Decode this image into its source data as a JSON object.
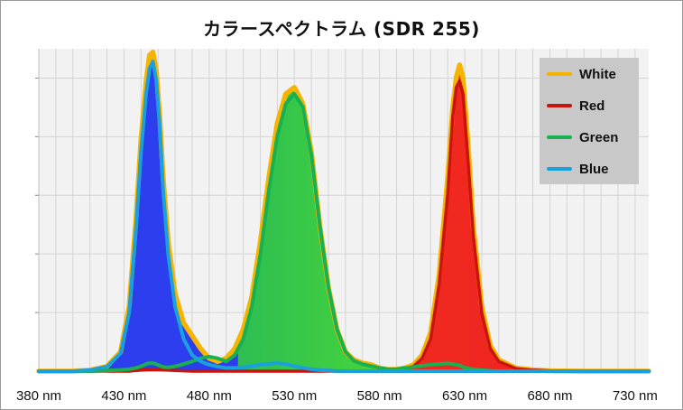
{
  "chart_data": {
    "type": "area",
    "title": "カラースペクトラム (SDR 255)",
    "xlabel": "",
    "ylabel": "",
    "x_ticks": [
      "380 nm",
      "430 nm",
      "480 nm",
      "530 nm",
      "580 nm",
      "630 nm",
      "680 nm",
      "730 nm"
    ],
    "xlim": [
      380,
      738
    ],
    "ylim": [
      0,
      1.0
    ],
    "grid": true,
    "legend_position": "top-right",
    "x": [
      380,
      400,
      410,
      420,
      428,
      433,
      437,
      440,
      443,
      445,
      447,
      449,
      451,
      453,
      456,
      460,
      465,
      470,
      475,
      480,
      485,
      490,
      495,
      500,
      505,
      510,
      515,
      520,
      525,
      530,
      535,
      540,
      545,
      550,
      555,
      560,
      565,
      570,
      575,
      580,
      585,
      590,
      595,
      600,
      605,
      610,
      615,
      620,
      623,
      625,
      627,
      629,
      632,
      635,
      640,
      645,
      650,
      660,
      670,
      680,
      700,
      738
    ],
    "series": [
      {
        "name": "White",
        "color": "#f5b400",
        "values": [
          0,
          0,
          0.003,
          0.015,
          0.06,
          0.2,
          0.47,
          0.72,
          0.9,
          0.98,
          0.99,
          0.93,
          0.79,
          0.6,
          0.4,
          0.24,
          0.15,
          0.11,
          0.07,
          0.04,
          0.03,
          0.04,
          0.07,
          0.13,
          0.23,
          0.4,
          0.6,
          0.77,
          0.86,
          0.88,
          0.83,
          0.68,
          0.45,
          0.26,
          0.13,
          0.06,
          0.035,
          0.025,
          0.02,
          0.01,
          0.005,
          0.006,
          0.01,
          0.02,
          0.05,
          0.12,
          0.3,
          0.6,
          0.82,
          0.91,
          0.95,
          0.91,
          0.7,
          0.45,
          0.2,
          0.08,
          0.035,
          0.01,
          0.004,
          0.001,
          0,
          0
        ]
      },
      {
        "name": "Red",
        "color": "#c8140c",
        "values": [
          0,
          0,
          0,
          0,
          0,
          0,
          0.002,
          0.003,
          0.004,
          0.005,
          0.005,
          0.005,
          0.005,
          0.004,
          0.003,
          0.002,
          0.001,
          0,
          0,
          0,
          0,
          0,
          0,
          0,
          0,
          0,
          0,
          0,
          0,
          0,
          0,
          0,
          0,
          0,
          0,
          0,
          0,
          0,
          0,
          0.001,
          0.003,
          0.004,
          0.008,
          0.015,
          0.04,
          0.1,
          0.27,
          0.55,
          0.79,
          0.88,
          0.9,
          0.86,
          0.65,
          0.42,
          0.18,
          0.07,
          0.03,
          0.008,
          0.003,
          0.001,
          0,
          0
        ]
      },
      {
        "name": "Green",
        "color": "#18b050",
        "values": [
          0,
          0,
          0,
          0.002,
          0.004,
          0.006,
          0.01,
          0.015,
          0.022,
          0.025,
          0.025,
          0.022,
          0.017,
          0.013,
          0.012,
          0.015,
          0.022,
          0.03,
          0.04,
          0.045,
          0.04,
          0.03,
          0.05,
          0.1,
          0.2,
          0.36,
          0.56,
          0.73,
          0.83,
          0.86,
          0.82,
          0.67,
          0.45,
          0.26,
          0.13,
          0.06,
          0.032,
          0.022,
          0.016,
          0.01,
          0.006,
          0.006,
          0.01,
          0.013,
          0.017,
          0.02,
          0.022,
          0.024,
          0.022,
          0.02,
          0.018,
          0.013,
          0.008,
          0.006,
          0.003,
          0.001,
          0,
          0,
          0,
          0,
          0,
          0
        ]
      },
      {
        "name": "Blue",
        "color": "#1aa0dc",
        "values": [
          0,
          0,
          0.003,
          0.014,
          0.055,
          0.18,
          0.44,
          0.68,
          0.86,
          0.94,
          0.96,
          0.9,
          0.76,
          0.56,
          0.36,
          0.2,
          0.1,
          0.05,
          0.03,
          0.02,
          0.014,
          0.01,
          0.01,
          0.012,
          0.015,
          0.02,
          0.023,
          0.025,
          0.022,
          0.016,
          0.01,
          0.006,
          0.003,
          0.002,
          0,
          0,
          0,
          0,
          0,
          0,
          0,
          0,
          0,
          0,
          0,
          0,
          0,
          0,
          0,
          0,
          0,
          0,
          0,
          0,
          0,
          0,
          0,
          0,
          0,
          0,
          0,
          0
        ]
      }
    ]
  }
}
